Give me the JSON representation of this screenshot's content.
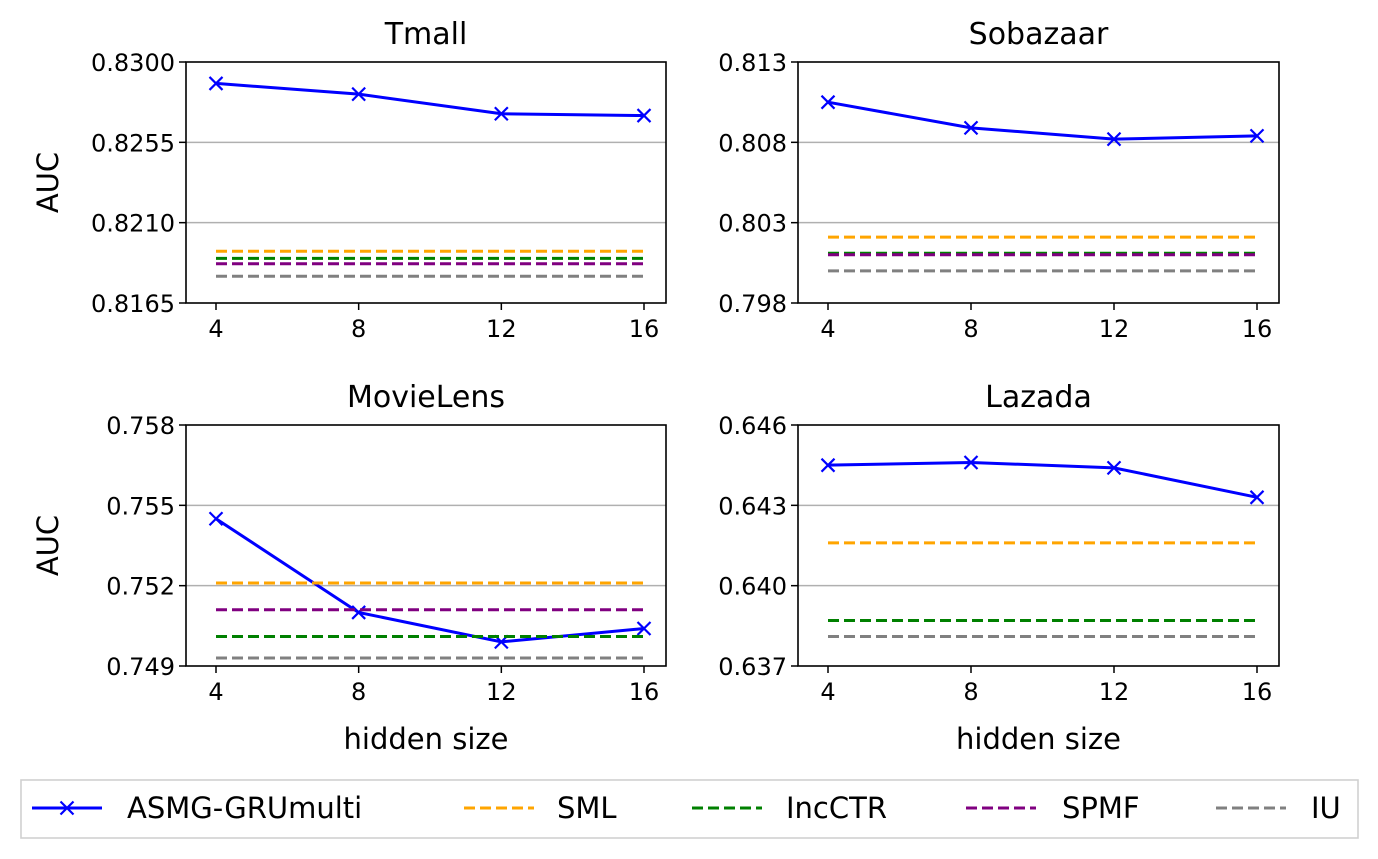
{
  "chart_data": [
    {
      "type": "line",
      "title": "Tmall",
      "xlabel": "",
      "ylabel": "AUC",
      "x": [
        4,
        8,
        12,
        16
      ],
      "xticks": [
        "4",
        "8",
        "12",
        "16"
      ],
      "ylim": [
        0.8165,
        0.83
      ],
      "yticks": [
        "0.8165",
        "0.8210",
        "0.8255",
        "0.8300"
      ],
      "grid": "y",
      "series": [
        {
          "name": "ASMG-GRUmulti",
          "values": [
            0.8288,
            0.8282,
            0.8271,
            0.827
          ]
        },
        {
          "name": "SML",
          "values": [
            0.8194,
            0.8194,
            0.8194,
            0.8194
          ]
        },
        {
          "name": "IncCTR",
          "values": [
            0.819,
            0.819,
            0.819,
            0.819
          ]
        },
        {
          "name": "SPMF",
          "values": [
            0.8187,
            0.8187,
            0.8187,
            0.8187
          ]
        },
        {
          "name": "IU",
          "values": [
            0.818,
            0.818,
            0.818,
            0.818
          ]
        }
      ]
    },
    {
      "type": "line",
      "title": "Sobazaar",
      "xlabel": "",
      "ylabel": "",
      "x": [
        4,
        8,
        12,
        16
      ],
      "xticks": [
        "4",
        "8",
        "12",
        "16"
      ],
      "ylim": [
        0.798,
        0.813
      ],
      "yticks": [
        "0.798",
        "0.803",
        "0.808",
        "0.813"
      ],
      "grid": "y",
      "series": [
        {
          "name": "ASMG-GRUmulti",
          "values": [
            0.8105,
            0.8089,
            0.8082,
            0.8084
          ]
        },
        {
          "name": "SML",
          "values": [
            0.8021,
            0.8021,
            0.8021,
            0.8021
          ]
        },
        {
          "name": "IncCTR",
          "values": [
            0.8011,
            0.8011,
            0.8011,
            0.8011
          ]
        },
        {
          "name": "SPMF",
          "values": [
            0.801,
            0.801,
            0.801,
            0.801
          ]
        },
        {
          "name": "IU",
          "values": [
            0.8,
            0.8,
            0.8,
            0.8
          ]
        }
      ]
    },
    {
      "type": "line",
      "title": "MovieLens",
      "xlabel": "hidden size",
      "ylabel": "AUC",
      "x": [
        4,
        8,
        12,
        16
      ],
      "xticks": [
        "4",
        "8",
        "12",
        "16"
      ],
      "ylim": [
        0.749,
        0.758
      ],
      "yticks": [
        "0.749",
        "0.752",
        "0.755",
        "0.758"
      ],
      "grid": "y",
      "series": [
        {
          "name": "ASMG-GRUmulti",
          "values": [
            0.7545,
            0.751,
            0.7499,
            0.7504
          ]
        },
        {
          "name": "SML",
          "values": [
            0.7521,
            0.7521,
            0.7521,
            0.7521
          ]
        },
        {
          "name": "IncCTR",
          "values": [
            0.7501,
            0.7501,
            0.7501,
            0.7501
          ]
        },
        {
          "name": "SPMF",
          "values": [
            0.7511,
            0.7511,
            0.7511,
            0.7511
          ]
        },
        {
          "name": "IU",
          "values": [
            0.7493,
            0.7493,
            0.7493,
            0.7493
          ]
        }
      ]
    },
    {
      "type": "line",
      "title": "Lazada",
      "xlabel": "hidden size",
      "ylabel": "",
      "x": [
        4,
        8,
        12,
        16
      ],
      "xticks": [
        "4",
        "8",
        "12",
        "16"
      ],
      "ylim": [
        0.637,
        0.646
      ],
      "yticks": [
        "0.637",
        "0.640",
        "0.643",
        "0.646"
      ],
      "grid": "y",
      "series": [
        {
          "name": "ASMG-GRUmulti",
          "values": [
            0.6445,
            0.6446,
            0.6444,
            0.6433
          ]
        },
        {
          "name": "SML",
          "values": [
            0.6416,
            0.6416,
            0.6416,
            0.6416
          ]
        },
        {
          "name": "IncCTR",
          "values": [
            0.6387,
            0.6387,
            0.6387,
            0.6387
          ]
        },
        {
          "name": "SPMF",
          "values": [
            null,
            null,
            null,
            null
          ]
        },
        {
          "name": "IU",
          "values": [
            0.6381,
            0.6381,
            0.6381,
            0.6381
          ]
        }
      ]
    }
  ],
  "legend": {
    "placement": "bottom",
    "entries": [
      {
        "label": "ASMG-GRUmulti",
        "color": "#0000ff",
        "style": "solid",
        "marker": "x"
      },
      {
        "label": "SML",
        "color": "#ffa500",
        "style": "dashed",
        "marker": ""
      },
      {
        "label": "IncCTR",
        "color": "#008000",
        "style": "dashed",
        "marker": ""
      },
      {
        "label": "SPMF",
        "color": "#800080",
        "style": "dashed",
        "marker": ""
      },
      {
        "label": "IU",
        "color": "#808080",
        "style": "dashed",
        "marker": ""
      }
    ]
  },
  "colors": {
    "ASMG-GRUmulti": "#0000ff",
    "SML": "#ffa500",
    "IncCTR": "#008000",
    "SPMF": "#800080",
    "IU": "#808080",
    "grid": "#b0b0b0"
  }
}
